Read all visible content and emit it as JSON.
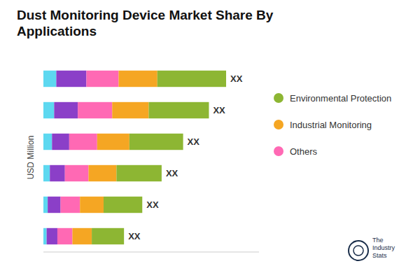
{
  "chart_data": {
    "type": "bar",
    "orientation": "horizontal",
    "stacked": true,
    "title": "Dust Monitoring Device Market Share By\nApplications",
    "y_label": "USD Million",
    "categories": [
      null,
      null,
      null,
      null,
      null,
      null
    ],
    "series": [
      {
        "color": "#5DD8F0",
        "values": [
          0.6,
          0.5,
          0.4,
          0.3,
          0.2,
          0.15
        ]
      },
      {
        "color": "#8B3FC8",
        "values": [
          1.4,
          1.1,
          0.8,
          0.7,
          0.6,
          0.5
        ]
      },
      {
        "name": "Others",
        "color": "#FF69B4",
        "values": [
          1.5,
          1.6,
          1.3,
          1.1,
          0.9,
          0.7
        ]
      },
      {
        "name": "Industrial Monitoring",
        "color": "#F5A623",
        "values": [
          1.8,
          1.7,
          1.5,
          1.3,
          1.1,
          0.9
        ]
      },
      {
        "name": "Environmental Protection",
        "color": "#8DB633",
        "values": [
          3.2,
          2.8,
          2.5,
          2.1,
          1.8,
          1.5
        ]
      }
    ],
    "xlim": [
      0,
      10.03
    ],
    "xticks": [],
    "tick_labels": false,
    "grid": false,
    "legend": "right",
    "annotations": [
      "XX",
      "XX",
      "XX",
      "XX",
      "XX",
      "XX",
      "The\nIndustry\nStats"
    ]
  }
}
